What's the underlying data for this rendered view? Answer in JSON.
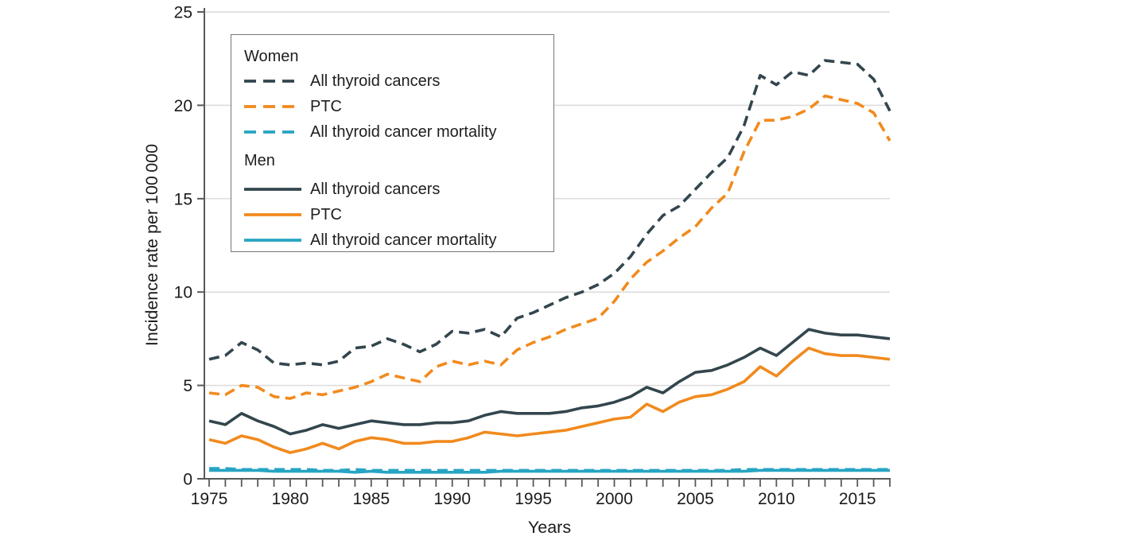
{
  "chart_data": {
    "type": "line",
    "title": "",
    "xlabel": "Years",
    "ylabel": "Incidence rate per 100 000",
    "xlim": [
      1975,
      2017
    ],
    "ylim": [
      0,
      25
    ],
    "grid": "horizontal",
    "y_ticks": [
      0,
      5,
      10,
      15,
      20,
      25
    ],
    "x_tick_labels": [
      1975,
      1980,
      1985,
      1990,
      1995,
      2000,
      2005,
      2010,
      2015
    ],
    "years": [
      1975,
      1976,
      1977,
      1978,
      1979,
      1980,
      1981,
      1982,
      1983,
      1984,
      1985,
      1986,
      1987,
      1988,
      1989,
      1990,
      1991,
      1992,
      1993,
      1994,
      1995,
      1996,
      1997,
      1998,
      1999,
      2000,
      2001,
      2002,
      2003,
      2004,
      2005,
      2006,
      2007,
      2008,
      2009,
      2010,
      2011,
      2012,
      2013,
      2014,
      2015,
      2016,
      2017
    ],
    "legend": {
      "position": "top-left",
      "women_header": "Women",
      "men_header": "Men"
    },
    "colors": {
      "dark": "#33464E",
      "orange": "#F18A1D",
      "teal": "#27A4C3",
      "grid": "#DBDBDB",
      "axis": "#58595B"
    },
    "series": [
      {
        "id": "women-all-thyroid",
        "group": "Women",
        "name": "All thyroid cancers",
        "style": "dashed",
        "color": "#33464E",
        "values": [
          6.4,
          6.6,
          7.3,
          6.9,
          6.2,
          6.1,
          6.2,
          6.1,
          6.3,
          7.0,
          7.1,
          7.5,
          7.2,
          6.8,
          7.2,
          7.9,
          7.8,
          8.0,
          7.6,
          8.6,
          8.9,
          9.3,
          9.7,
          10.0,
          10.4,
          11.0,
          11.9,
          13.1,
          14.1,
          14.6,
          15.5,
          16.4,
          17.2,
          18.9,
          21.6,
          21.1,
          21.8,
          21.6,
          22.4,
          22.3,
          22.2,
          21.4,
          19.7
        ]
      },
      {
        "id": "women-ptc",
        "group": "Women",
        "name": "PTC",
        "style": "dashed",
        "color": "#F18A1D",
        "values": [
          4.6,
          4.5,
          5.0,
          4.9,
          4.4,
          4.3,
          4.6,
          4.5,
          4.7,
          4.9,
          5.2,
          5.6,
          5.4,
          5.2,
          6.0,
          6.3,
          6.1,
          6.3,
          6.1,
          6.9,
          7.3,
          7.6,
          8.0,
          8.3,
          8.6,
          9.5,
          10.7,
          11.6,
          12.2,
          12.9,
          13.5,
          14.5,
          15.3,
          17.5,
          19.2,
          19.2,
          19.4,
          19.8,
          20.5,
          20.3,
          20.1,
          19.6,
          18.1
        ]
      },
      {
        "id": "women-mortality",
        "group": "Women",
        "name": "All thyroid cancer mortality",
        "style": "dashed",
        "color": "#27A4C3",
        "values": [
          0.55,
          0.55,
          0.5,
          0.5,
          0.5,
          0.5,
          0.5,
          0.45,
          0.45,
          0.5,
          0.45,
          0.45,
          0.45,
          0.45,
          0.45,
          0.45,
          0.45,
          0.45,
          0.45,
          0.45,
          0.45,
          0.45,
          0.45,
          0.45,
          0.45,
          0.45,
          0.45,
          0.45,
          0.45,
          0.45,
          0.45,
          0.45,
          0.45,
          0.5,
          0.5,
          0.5,
          0.5,
          0.5,
          0.5,
          0.5,
          0.5,
          0.5,
          0.5
        ]
      },
      {
        "id": "men-all-thyroid",
        "group": "Men",
        "name": "All thyroid cancers",
        "style": "solid",
        "color": "#33464E",
        "values": [
          3.1,
          2.9,
          3.5,
          3.1,
          2.8,
          2.4,
          2.6,
          2.9,
          2.7,
          2.9,
          3.1,
          3.0,
          2.9,
          2.9,
          3.0,
          3.0,
          3.1,
          3.4,
          3.6,
          3.5,
          3.5,
          3.5,
          3.6,
          3.8,
          3.9,
          4.1,
          4.4,
          4.9,
          4.6,
          5.2,
          5.7,
          5.8,
          6.1,
          6.5,
          7.0,
          6.6,
          7.3,
          8.0,
          7.8,
          7.7,
          7.7,
          7.6,
          7.5
        ]
      },
      {
        "id": "men-ptc",
        "group": "Men",
        "name": "PTC",
        "style": "solid",
        "color": "#F18A1D",
        "values": [
          2.1,
          1.9,
          2.3,
          2.1,
          1.7,
          1.4,
          1.6,
          1.9,
          1.6,
          2.0,
          2.2,
          2.1,
          1.9,
          1.9,
          2.0,
          2.0,
          2.2,
          2.5,
          2.4,
          2.3,
          2.4,
          2.5,
          2.6,
          2.8,
          3.0,
          3.2,
          3.3,
          4.0,
          3.6,
          4.1,
          4.4,
          4.5,
          4.8,
          5.2,
          6.0,
          5.5,
          6.3,
          7.0,
          6.7,
          6.6,
          6.6,
          6.5,
          6.4
        ]
      },
      {
        "id": "men-mortality",
        "group": "Men",
        "name": "All thyroid cancer mortality",
        "style": "solid",
        "color": "#27A4C3",
        "values": [
          0.45,
          0.45,
          0.45,
          0.45,
          0.4,
          0.4,
          0.4,
          0.4,
          0.4,
          0.35,
          0.4,
          0.35,
          0.35,
          0.35,
          0.35,
          0.35,
          0.35,
          0.35,
          0.4,
          0.4,
          0.4,
          0.4,
          0.4,
          0.4,
          0.4,
          0.4,
          0.4,
          0.4,
          0.4,
          0.4,
          0.4,
          0.4,
          0.4,
          0.4,
          0.45,
          0.45,
          0.45,
          0.45,
          0.45,
          0.45,
          0.45,
          0.45,
          0.45
        ]
      }
    ]
  }
}
